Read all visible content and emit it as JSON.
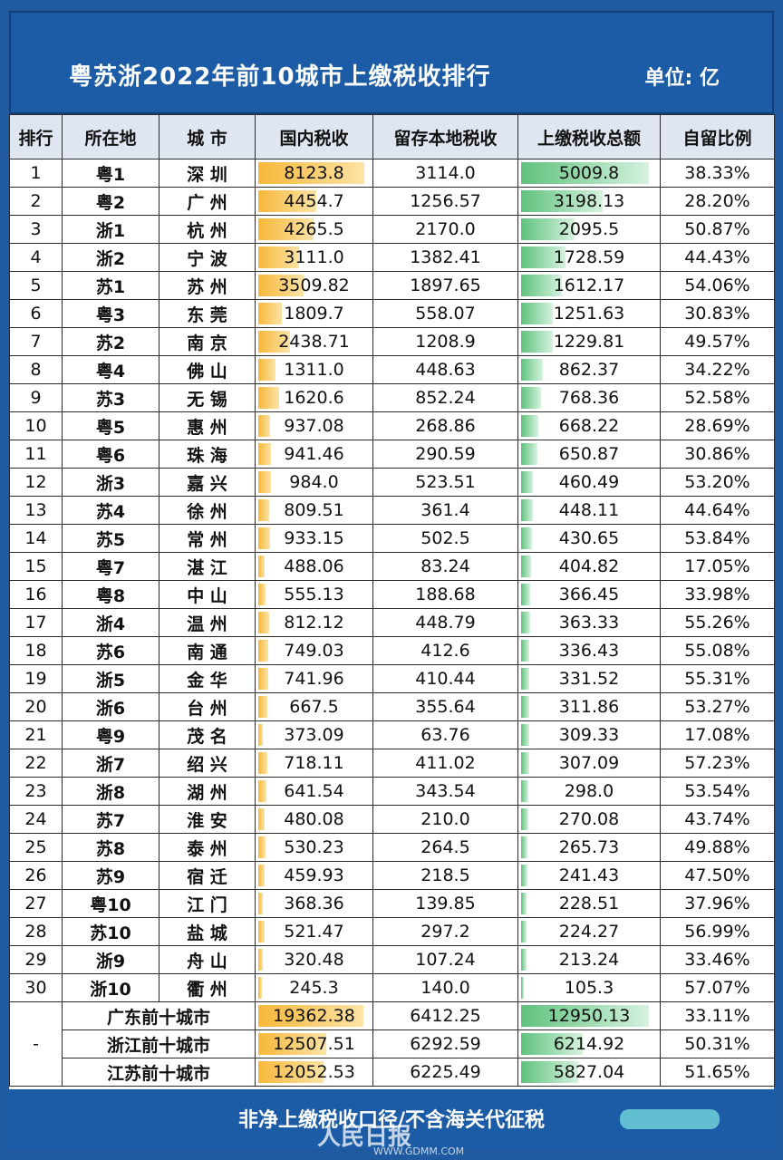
{
  "title": "粤苏浙2022年前10城市上缴税收排行",
  "unit": "单位: 亿",
  "headers": [
    "排行",
    "所在地",
    "城 市",
    "国内税收",
    "留存本地税收",
    "上缴税收总额",
    "自留比例"
  ],
  "rows": [
    [
      "1",
      "粤1",
      "深 圳",
      "8123.8",
      "3114.0",
      "5009.8",
      "38.33%"
    ],
    [
      "2",
      "粤2",
      "广 州",
      "4454.7",
      "1256.57",
      "3198.13",
      "28.20%"
    ],
    [
      "3",
      "浙1",
      "杭 州",
      "4265.5",
      "2170.0",
      "2095.5",
      "50.87%"
    ],
    [
      "4",
      "浙2",
      "宁 波",
      "3111.0",
      "1382.41",
      "1728.59",
      "44.43%"
    ],
    [
      "5",
      "苏1",
      "苏 州",
      "3509.82",
      "1897.65",
      "1612.17",
      "54.06%"
    ],
    [
      "6",
      "粤3",
      "东 莞",
      "1809.7",
      "558.07",
      "1251.63",
      "30.83%"
    ],
    [
      "7",
      "苏2",
      "南 京",
      "2438.71",
      "1208.9",
      "1229.81",
      "49.57%"
    ],
    [
      "8",
      "粤4",
      "佛 山",
      "1311.0",
      "448.63",
      "862.37",
      "34.22%"
    ],
    [
      "9",
      "苏3",
      "无 锡",
      "1620.6",
      "852.24",
      "768.36",
      "52.58%"
    ],
    [
      "10",
      "粤5",
      "惠 州",
      "937.08",
      "268.86",
      "668.22",
      "28.69%"
    ],
    [
      "11",
      "粤6",
      "珠 海",
      "941.46",
      "290.59",
      "650.87",
      "30.86%"
    ],
    [
      "12",
      "浙3",
      "嘉 兴",
      "984.0",
      "523.51",
      "460.49",
      "53.20%"
    ],
    [
      "13",
      "苏4",
      "徐 州",
      "809.51",
      "361.4",
      "448.11",
      "44.64%"
    ],
    [
      "14",
      "苏5",
      "常 州",
      "933.15",
      "502.5",
      "430.65",
      "53.84%"
    ],
    [
      "15",
      "粤7",
      "湛 江",
      "488.06",
      "83.24",
      "404.82",
      "17.05%"
    ],
    [
      "16",
      "粤8",
      "中 山",
      "555.13",
      "188.68",
      "366.45",
      "33.98%"
    ],
    [
      "17",
      "浙4",
      "温 州",
      "812.12",
      "448.79",
      "363.33",
      "55.26%"
    ],
    [
      "18",
      "苏6",
      "南 通",
      "749.03",
      "412.6",
      "336.43",
      "55.08%"
    ],
    [
      "19",
      "浙5",
      "金 华",
      "741.96",
      "410.44",
      "331.52",
      "55.31%"
    ],
    [
      "20",
      "浙6",
      "台 州",
      "667.5",
      "355.64",
      "311.86",
      "53.27%"
    ],
    [
      "21",
      "粤9",
      "茂 名",
      "373.09",
      "63.76",
      "309.33",
      "17.08%"
    ],
    [
      "22",
      "浙7",
      "绍 兴",
      "718.11",
      "411.02",
      "307.09",
      "57.23%"
    ],
    [
      "23",
      "浙8",
      "湖 州",
      "641.54",
      "343.54",
      "298.0",
      "53.54%"
    ],
    [
      "24",
      "苏7",
      "淮 安",
      "480.08",
      "210.0",
      "270.08",
      "43.74%"
    ],
    [
      "25",
      "苏8",
      "泰 州",
      "530.23",
      "264.5",
      "265.73",
      "49.88%"
    ],
    [
      "26",
      "苏9",
      "宿 迁",
      "459.93",
      "218.5",
      "241.43",
      "47.50%"
    ],
    [
      "27",
      "粤10",
      "江 门",
      "368.36",
      "139.85",
      "228.51",
      "37.96%"
    ],
    [
      "28",
      "苏10",
      "盐 城",
      "521.47",
      "297.2",
      "224.27",
      "56.99%"
    ],
    [
      "29",
      "浙9",
      "舟 山",
      "320.48",
      "107.24",
      "213.24",
      "33.46%"
    ],
    [
      "30",
      "浙10",
      "衢 州",
      "245.3",
      "140.0",
      "105.3",
      "57.07%"
    ]
  ],
  "summary_rank": "-",
  "summary": [
    [
      "广东前十城市",
      "19362.38",
      "6412.25",
      "12950.13",
      "33.11%"
    ],
    [
      "浙江前十城市",
      "12507.51",
      "6292.59",
      "6214.92",
      "50.31%"
    ],
    [
      "江苏前十城市",
      "12052.53",
      "6225.49",
      "5827.04",
      "51.65%"
    ]
  ],
  "footer": "非净上缴税收口径/不含海关代征税",
  "watermark": "人民日报",
  "watermark_url": "WWW.GDMM.COM",
  "colors": {
    "header_bg": "#1c5ca6",
    "domestic_bar": "#f6b83a",
    "remit_bar": "#5fc27d"
  }
}
